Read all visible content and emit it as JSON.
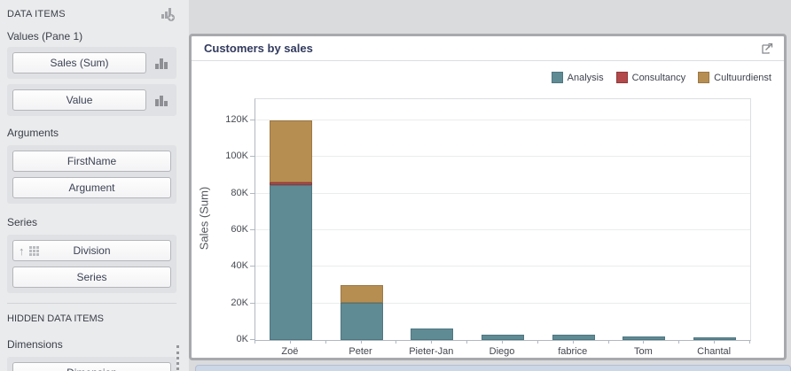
{
  "panel": {
    "header": "DATA ITEMS",
    "values_label": "Values (Pane 1)",
    "sales_button": "Sales (Sum)",
    "value_button": "Value",
    "arguments_label": "Arguments",
    "firstname_button": "FirstName",
    "argument_button": "Argument",
    "series_label": "Series",
    "division_button": "Division",
    "series_button": "Series",
    "hidden_header": "HIDDEN DATA ITEMS",
    "dimensions_label": "Dimensions",
    "dimension_button": "Dimension"
  },
  "widget": {
    "title": "Customers by sales",
    "export_icon": "export-icon"
  },
  "chart_data": {
    "type": "bar",
    "stacked": true,
    "title": "Customers by sales",
    "xlabel": "",
    "ylabel": "Sales (Sum)",
    "grid": true,
    "legend_position": "top-right",
    "categories": [
      "Zoë",
      "Peter",
      "Pieter-Jan",
      "Diego",
      "fabrice",
      "Tom",
      "Chantal"
    ],
    "series": [
      {
        "name": "Analysis",
        "color": "#5f8b94",
        "border": "#4e7681",
        "values": [
          84500,
          20500,
          6500,
          3000,
          3000,
          1800,
          1400
        ]
      },
      {
        "name": "Consultancy",
        "color": "#b3494b",
        "border": "#8f3a3c",
        "values": [
          1500,
          0,
          0,
          0,
          0,
          0,
          0
        ]
      },
      {
        "name": "Cultuurdienst",
        "color": "#b78e52",
        "border": "#9c7843",
        "values": [
          34000,
          9500,
          0,
          0,
          0,
          0,
          0
        ]
      }
    ],
    "y_ticks": [
      {
        "label": "0K",
        "value": 0
      },
      {
        "label": "20K",
        "value": 20000
      },
      {
        "label": "40K",
        "value": 40000
      },
      {
        "label": "60K",
        "value": 60000
      },
      {
        "label": "80K",
        "value": 80000
      },
      {
        "label": "100K",
        "value": 100000
      },
      {
        "label": "120K",
        "value": 120000
      }
    ],
    "ylim": [
      0,
      131500
    ]
  }
}
